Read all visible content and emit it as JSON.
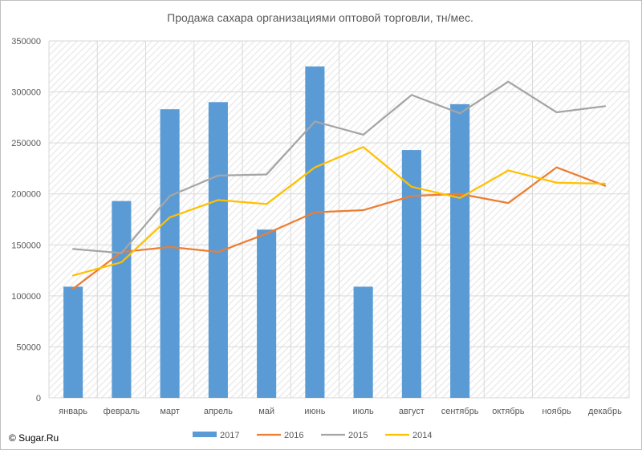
{
  "copyright": "© Sugar.Ru",
  "chart_data": {
    "type": "bar",
    "title": "Продажа сахара организациями оптовой торговли, тн/мес.",
    "categories": [
      "январь",
      "февраль",
      "март",
      "апрель",
      "май",
      "июнь",
      "июль",
      "август",
      "сентябрь",
      "октябрь",
      "ноябрь",
      "декабрь"
    ],
    "ylim": [
      0,
      350000
    ],
    "yticks": [
      0,
      50000,
      100000,
      150000,
      200000,
      250000,
      300000,
      350000
    ],
    "grid": true,
    "legend_position": "bottom",
    "series": [
      {
        "name": "2017",
        "type": "bar",
        "color": "#5b9bd5",
        "values": [
          109000,
          193000,
          283000,
          290000,
          165000,
          325000,
          109000,
          243000,
          288000,
          null,
          null,
          null
        ]
      },
      {
        "name": "2016",
        "type": "line",
        "color": "#ed7d31",
        "values": [
          107000,
          143000,
          148000,
          143000,
          161000,
          182000,
          184000,
          198000,
          200000,
          191000,
          226000,
          208000
        ]
      },
      {
        "name": "2015",
        "type": "line",
        "color": "#a5a5a5",
        "values": [
          146000,
          142000,
          198000,
          218000,
          219000,
          271000,
          258000,
          297000,
          279000,
          310000,
          280000,
          286000
        ]
      },
      {
        "name": "2014",
        "type": "line",
        "color": "#ffc000",
        "values": [
          120000,
          133000,
          177000,
          194000,
          190000,
          226000,
          246000,
          207000,
          196000,
          223000,
          211000,
          210000
        ]
      }
    ]
  }
}
